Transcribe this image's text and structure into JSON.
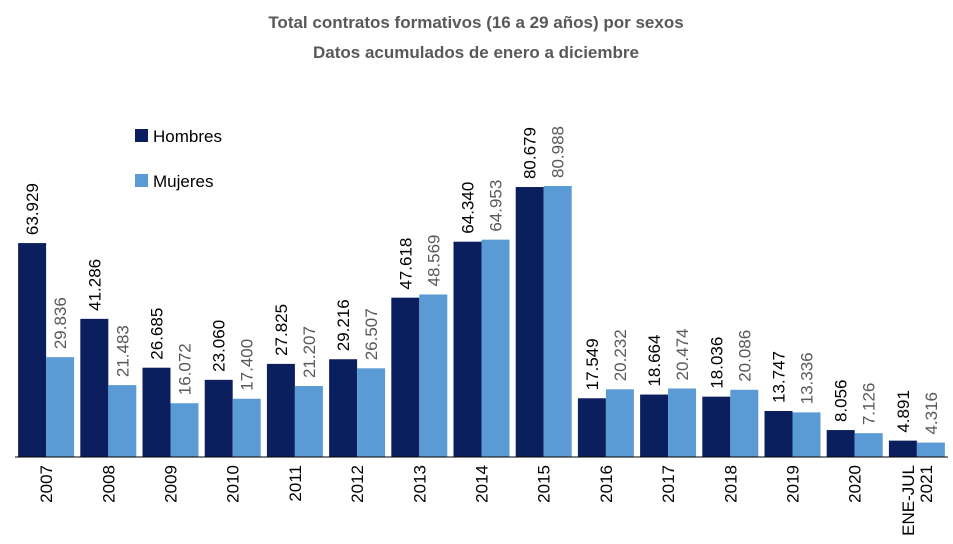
{
  "chart_data": {
    "type": "bar",
    "title": "Total contratos formativos (16 a 29 años) por sexos",
    "subtitle": "Datos acumulados  de enero a diciembre",
    "categories": [
      "2007",
      "2008",
      "2009",
      "2010",
      "2011",
      "2012",
      "2013",
      "2014",
      "2015",
      "2016",
      "2017",
      "2018",
      "2019",
      "2020",
      "ENE-JUL 2021"
    ],
    "series": [
      {
        "name": "Hombres",
        "color": "#0b1f5e",
        "values": [
          63929,
          41286,
          26685,
          23060,
          27825,
          29216,
          47618,
          64340,
          80679,
          17549,
          18664,
          18036,
          13747,
          8056,
          4891
        ],
        "value_labels": [
          "63.929",
          "41.286",
          "26.685",
          "23.060",
          "27.825",
          "29.216",
          "47.618",
          "64.340",
          "80.679",
          "17.549",
          "18.664",
          "18.036",
          "13.747",
          "8.056",
          "4.891"
        ]
      },
      {
        "name": "Mujeres",
        "color": "#5b9bd5",
        "values": [
          29836,
          21483,
          16072,
          17400,
          21207,
          26507,
          48569,
          64953,
          80988,
          20232,
          20474,
          20086,
          13336,
          7126,
          4316
        ],
        "value_labels": [
          "29.836",
          "21.483",
          "16.072",
          "17.400",
          "21.207",
          "26.507",
          "48.569",
          "64.953",
          "80.988",
          "20.232",
          "20.474",
          "20.086",
          "13.336",
          "7.126",
          "4.316"
        ]
      }
    ],
    "legend": "top-left"
  }
}
